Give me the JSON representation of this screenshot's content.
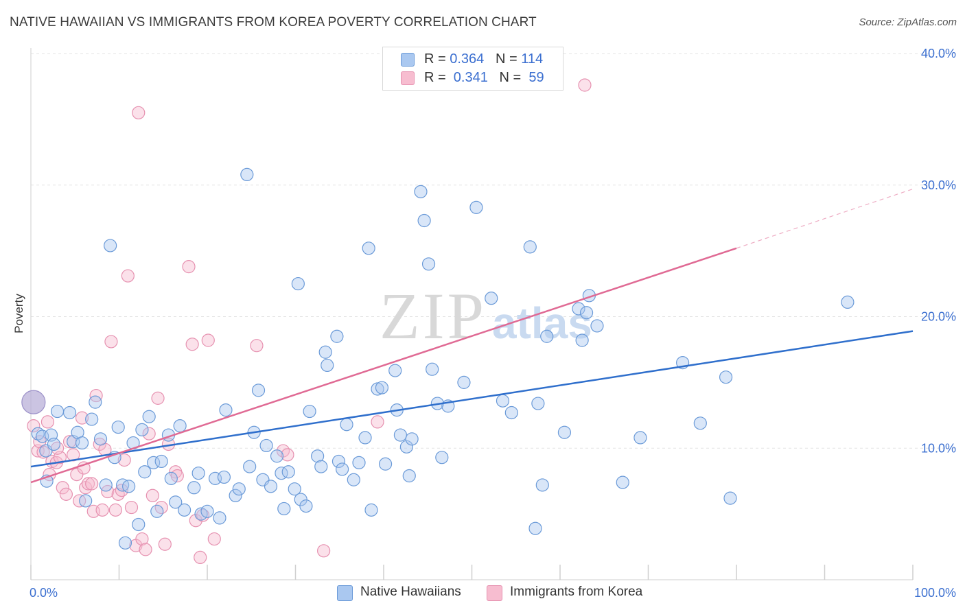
{
  "title": "NATIVE HAWAIIAN VS IMMIGRANTS FROM KOREA POVERTY CORRELATION CHART",
  "source": "Source: ZipAtlas.com",
  "watermark": {
    "zip": "ZIP",
    "atlas": "atlas"
  },
  "legend": {
    "rows": [
      {
        "r_label": "R = ",
        "r_value": "0.364",
        "n_label": "N = ",
        "n_value": "114"
      },
      {
        "r_label": "R = ",
        "r_value": " 0.341",
        "n_label": "N = ",
        "n_value": " 59"
      }
    ]
  },
  "colors": {
    "blue_fill": "#aac8f0",
    "blue_stroke": "#6a9ad8",
    "blue_line": "#2f6fcc",
    "pink_fill": "#f7bdd0",
    "pink_stroke": "#e691b0",
    "pink_line": "#e06a94",
    "axis_text": "#3b6fd0",
    "grid": "#e3e3e3"
  },
  "chart_data": {
    "type": "scatter",
    "title": "NATIVE HAWAIIAN VS IMMIGRANTS FROM KOREA POVERTY CORRELATION CHART",
    "xlabel": "",
    "ylabel": "Poverty",
    "xlim": [
      0,
      100
    ],
    "ylim": [
      0,
      40
    ],
    "x_tick_labels": [
      "0.0%",
      "100.0%"
    ],
    "y_ticks": [
      10,
      20,
      30,
      40
    ],
    "y_tick_labels": [
      "10.0%",
      "20.0%",
      "30.0%",
      "40.0%"
    ],
    "series": [
      {
        "name": "Native Hawaiians",
        "r": 0.364,
        "n": 114,
        "trend": {
          "x0": 0,
          "y0": 8.6,
          "x1": 100,
          "y1": 18.9
        },
        "points": [
          [
            0.3,
            13.5
          ],
          [
            0.8,
            11.1
          ],
          [
            1.3,
            10.9
          ],
          [
            1.7,
            9.8
          ],
          [
            2.3,
            11.0
          ],
          [
            2.6,
            10.3
          ],
          [
            3.0,
            12.8
          ],
          [
            1.8,
            7.5
          ],
          [
            4.4,
            12.7
          ],
          [
            4.8,
            10.5
          ],
          [
            5.3,
            11.2
          ],
          [
            5.8,
            10.4
          ],
          [
            6.2,
            6.0
          ],
          [
            6.9,
            12.2
          ],
          [
            7.3,
            13.5
          ],
          [
            7.9,
            10.7
          ],
          [
            8.5,
            7.2
          ],
          [
            9.0,
            25.4
          ],
          [
            9.5,
            9.3
          ],
          [
            9.9,
            11.6
          ],
          [
            10.4,
            7.2
          ],
          [
            10.7,
            2.8
          ],
          [
            11.1,
            7.1
          ],
          [
            11.6,
            10.4
          ],
          [
            12.2,
            4.2
          ],
          [
            12.6,
            11.4
          ],
          [
            12.9,
            8.2
          ],
          [
            13.4,
            12.4
          ],
          [
            13.9,
            8.9
          ],
          [
            14.3,
            5.2
          ],
          [
            14.8,
            9.0
          ],
          [
            15.6,
            11.0
          ],
          [
            15.9,
            7.7
          ],
          [
            16.4,
            5.9
          ],
          [
            16.9,
            11.7
          ],
          [
            17.4,
            5.3
          ],
          [
            18.5,
            7.0
          ],
          [
            19.0,
            8.1
          ],
          [
            19.3,
            5.0
          ],
          [
            20.0,
            5.2
          ],
          [
            20.9,
            7.7
          ],
          [
            21.4,
            4.7
          ],
          [
            21.9,
            7.8
          ],
          [
            22.1,
            12.9
          ],
          [
            23.2,
            6.4
          ],
          [
            23.6,
            6.9
          ],
          [
            24.5,
            30.8
          ],
          [
            24.8,
            8.6
          ],
          [
            25.3,
            11.2
          ],
          [
            25.8,
            14.4
          ],
          [
            26.3,
            7.6
          ],
          [
            26.7,
            10.2
          ],
          [
            27.2,
            7.1
          ],
          [
            27.9,
            9.4
          ],
          [
            28.4,
            8.1
          ],
          [
            28.7,
            5.4
          ],
          [
            29.2,
            8.2
          ],
          [
            29.9,
            6.9
          ],
          [
            30.3,
            22.5
          ],
          [
            30.6,
            6.1
          ],
          [
            31.2,
            5.6
          ],
          [
            31.6,
            12.8
          ],
          [
            32.5,
            9.4
          ],
          [
            32.9,
            8.6
          ],
          [
            33.4,
            17.3
          ],
          [
            33.6,
            16.3
          ],
          [
            34.7,
            18.5
          ],
          [
            34.9,
            9.0
          ],
          [
            35.3,
            8.4
          ],
          [
            35.8,
            11.8
          ],
          [
            36.6,
            7.6
          ],
          [
            37.2,
            8.9
          ],
          [
            37.9,
            10.8
          ],
          [
            38.3,
            25.2
          ],
          [
            38.6,
            5.3
          ],
          [
            39.3,
            14.5
          ],
          [
            39.8,
            14.6
          ],
          [
            40.2,
            8.8
          ],
          [
            41.3,
            15.9
          ],
          [
            41.5,
            12.9
          ],
          [
            41.9,
            11.0
          ],
          [
            42.6,
            10.1
          ],
          [
            42.9,
            7.9
          ],
          [
            43.2,
            10.7
          ],
          [
            44.2,
            29.5
          ],
          [
            44.6,
            27.3
          ],
          [
            45.1,
            24.0
          ],
          [
            45.5,
            16.0
          ],
          [
            46.1,
            13.4
          ],
          [
            46.6,
            9.3
          ],
          [
            47.3,
            13.2
          ],
          [
            49.1,
            15.0
          ],
          [
            50.5,
            28.3
          ],
          [
            52.2,
            21.4
          ],
          [
            53.5,
            13.6
          ],
          [
            54.5,
            12.7
          ],
          [
            56.6,
            25.3
          ],
          [
            57.2,
            3.9
          ],
          [
            57.5,
            13.4
          ],
          [
            58.0,
            7.2
          ],
          [
            58.5,
            18.5
          ],
          [
            60.5,
            11.2
          ],
          [
            62.1,
            20.6
          ],
          [
            62.5,
            18.2
          ],
          [
            63.0,
            20.3
          ],
          [
            63.3,
            21.6
          ],
          [
            64.2,
            19.3
          ],
          [
            67.1,
            7.4
          ],
          [
            69.1,
            10.8
          ],
          [
            73.9,
            16.5
          ],
          [
            75.9,
            11.9
          ],
          [
            78.8,
            15.4
          ],
          [
            79.3,
            6.2
          ],
          [
            92.6,
            21.1
          ]
        ]
      },
      {
        "name": "Immigrants from Korea",
        "r": 0.341,
        "n": 59,
        "trend": {
          "x0": 0,
          "y0": 7.4,
          "x1": 80,
          "y1": 25.2,
          "dashed_to_x": 100,
          "dashed_to_y": 29.7
        },
        "points": [
          [
            0.3,
            11.7
          ],
          [
            0.8,
            9.8
          ],
          [
            1.4,
            9.7
          ],
          [
            1.9,
            12.0
          ],
          [
            2.1,
            8.0
          ],
          [
            2.4,
            9.0
          ],
          [
            2.9,
            8.9
          ],
          [
            3.3,
            9.3
          ],
          [
            3.6,
            7.0
          ],
          [
            4.0,
            6.5
          ],
          [
            4.4,
            10.5
          ],
          [
            4.8,
            9.5
          ],
          [
            5.2,
            8.0
          ],
          [
            5.5,
            6.0
          ],
          [
            5.8,
            12.3
          ],
          [
            6.2,
            7.0
          ],
          [
            6.5,
            7.3
          ],
          [
            6.9,
            7.3
          ],
          [
            7.1,
            5.2
          ],
          [
            7.4,
            14.0
          ],
          [
            7.8,
            10.3
          ],
          [
            8.1,
            5.3
          ],
          [
            8.4,
            9.9
          ],
          [
            8.7,
            6.7
          ],
          [
            9.1,
            18.1
          ],
          [
            9.6,
            5.3
          ],
          [
            9.9,
            6.5
          ],
          [
            10.3,
            6.8
          ],
          [
            10.6,
            9.1
          ],
          [
            11.0,
            23.1
          ],
          [
            11.4,
            5.5
          ],
          [
            11.9,
            2.6
          ],
          [
            12.2,
            35.5
          ],
          [
            12.6,
            3.1
          ],
          [
            13.0,
            2.3
          ],
          [
            13.4,
            11.1
          ],
          [
            13.8,
            6.4
          ],
          [
            14.4,
            13.8
          ],
          [
            14.8,
            5.5
          ],
          [
            15.2,
            2.7
          ],
          [
            15.6,
            10.3
          ],
          [
            16.4,
            8.2
          ],
          [
            16.6,
            7.9
          ],
          [
            17.9,
            23.8
          ],
          [
            18.3,
            17.9
          ],
          [
            18.7,
            4.5
          ],
          [
            19.2,
            1.7
          ],
          [
            19.5,
            4.9
          ],
          [
            20.1,
            18.2
          ],
          [
            20.8,
            3.1
          ],
          [
            25.6,
            17.8
          ],
          [
            28.6,
            9.8
          ],
          [
            29.1,
            9.5
          ],
          [
            33.2,
            2.2
          ],
          [
            39.3,
            12.0
          ],
          [
            62.8,
            37.6
          ],
          [
            1.0,
            10.5
          ],
          [
            3.0,
            10.0
          ],
          [
            6.0,
            8.5
          ]
        ]
      }
    ],
    "legend": [
      "Native Hawaiians",
      "Immigrants from Korea"
    ]
  }
}
